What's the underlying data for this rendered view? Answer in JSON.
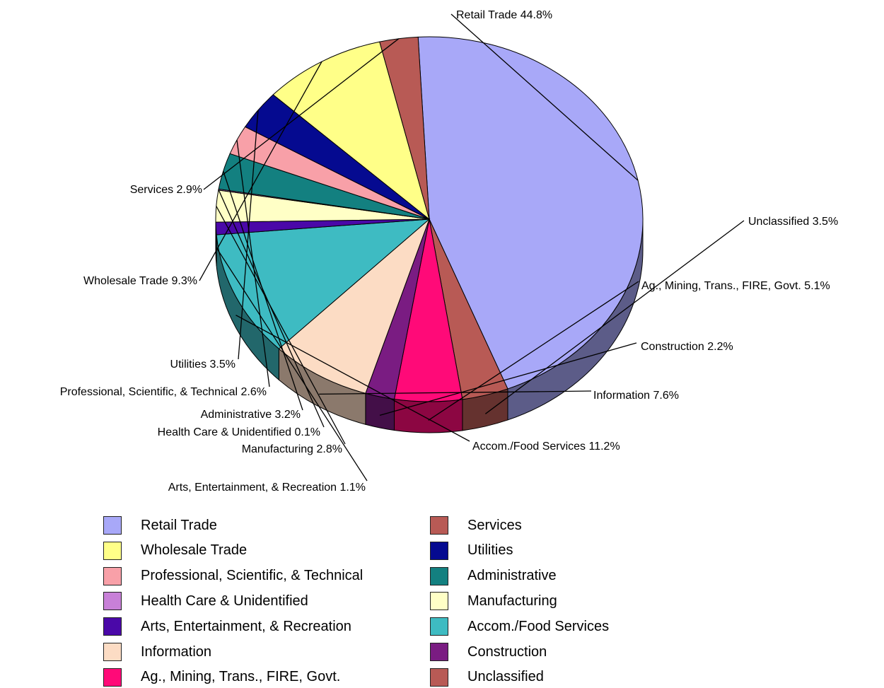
{
  "chart_data": {
    "type": "pie",
    "title": "",
    "start_angle_deg": 93,
    "slices": [
      {
        "label": "Retail Trade",
        "value": 44.8,
        "display": "Retail Trade 44.8%",
        "color": "#A8A8F8"
      },
      {
        "label": "Unclassified",
        "value": 3.5,
        "display": "Unclassified 3.5%",
        "color": "#B85A55"
      },
      {
        "label": "Ag., Mining, Trans., FIRE, Govt.",
        "value": 5.1,
        "display": "Ag., Mining, Trans., FIRE, Govt. 5.1%",
        "color": "#FF0A78"
      },
      {
        "label": "Construction",
        "value": 2.2,
        "display": "Construction 2.2%",
        "color": "#7A1C82"
      },
      {
        "label": "Information",
        "value": 7.6,
        "display": "Information 7.6%",
        "color": "#FCDCC4"
      },
      {
        "label": "Accom./Food Services",
        "value": 11.2,
        "display": "Accom./Food Services 11.2%",
        "color": "#3EBBC2"
      },
      {
        "label": "Arts, Entertainment, & Recreation",
        "value": 1.1,
        "display": "Arts, Entertainment, & Recreation 1.1%",
        "color": "#4A08A8"
      },
      {
        "label": "Manufacturing",
        "value": 2.8,
        "display": "Manufacturing 2.8%",
        "color": "#FFFFC6"
      },
      {
        "label": "Health Care & Unidentified",
        "value": 0.1,
        "display": "Health Care & Unidentified 0.1%",
        "color": "#C880D8"
      },
      {
        "label": "Administrative",
        "value": 3.2,
        "display": "Administrative 3.2%",
        "color": "#138080"
      },
      {
        "label": "Professional, Scientific, & Technical",
        "value": 2.6,
        "display": "Professional, Scientific, & Technical 2.6%",
        "color": "#F8A0A8"
      },
      {
        "label": "Utilities",
        "value": 3.5,
        "display": "Utilities 3.5%",
        "color": "#050A90"
      },
      {
        "label": "Wholesale Trade",
        "value": 9.3,
        "display": "Wholesale Trade 9.3%",
        "color": "#FFFF88"
      },
      {
        "label": "Services",
        "value": 2.9,
        "display": "Services 2.9%",
        "color": "#B85A55"
      }
    ],
    "legend": {
      "placement": "bottom",
      "columns": [
        [
          "Retail Trade",
          "Wholesale Trade",
          "Professional, Scientific, & Technical",
          "Health Care & Unidentified",
          "Arts, Entertainment, & Recreation",
          "Information",
          "Ag., Mining, Trans., FIRE, Govt."
        ],
        [
          "Services",
          "Utilities",
          "Administrative",
          "Manufacturing",
          "Accom./Food Services",
          "Construction",
          "Unclassified"
        ]
      ],
      "display_labels": {
        "Arts, Entertainment, & Recreation": "Arts, Entertainment, & Recreation",
        "Administrative": "Administrative",
        "Accom./Food Services": "Accom./Food Services",
        "Ag., Mining, Trans., FIRE, Govt.": "Ag., Mining, Trans., FIRE, Govt."
      }
    }
  }
}
